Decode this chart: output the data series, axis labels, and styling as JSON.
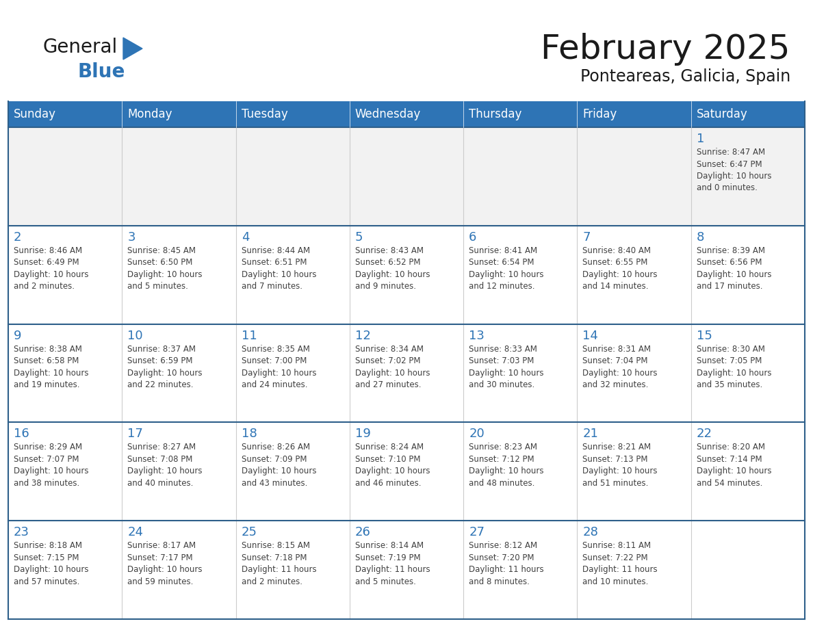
{
  "title": "February 2025",
  "subtitle": "Ponteareas, Galicia, Spain",
  "header_color": "#2E74B5",
  "header_text_color": "#FFFFFF",
  "cell_bg_color": "#FFFFFF",
  "row_separator_color": "#2E5F8A",
  "grid_line_color": "#CCCCCC",
  "day_number_color": "#2E74B5",
  "info_text_color": "#404040",
  "background_color": "#FFFFFF",
  "alt_row_bg": "#F2F2F2",
  "days_of_week": [
    "Sunday",
    "Monday",
    "Tuesday",
    "Wednesday",
    "Thursday",
    "Friday",
    "Saturday"
  ],
  "weeks": [
    [
      {
        "day": 0,
        "info": ""
      },
      {
        "day": 0,
        "info": ""
      },
      {
        "day": 0,
        "info": ""
      },
      {
        "day": 0,
        "info": ""
      },
      {
        "day": 0,
        "info": ""
      },
      {
        "day": 0,
        "info": ""
      },
      {
        "day": 1,
        "info": "Sunrise: 8:47 AM\nSunset: 6:47 PM\nDaylight: 10 hours\nand 0 minutes."
      }
    ],
    [
      {
        "day": 2,
        "info": "Sunrise: 8:46 AM\nSunset: 6:49 PM\nDaylight: 10 hours\nand 2 minutes."
      },
      {
        "day": 3,
        "info": "Sunrise: 8:45 AM\nSunset: 6:50 PM\nDaylight: 10 hours\nand 5 minutes."
      },
      {
        "day": 4,
        "info": "Sunrise: 8:44 AM\nSunset: 6:51 PM\nDaylight: 10 hours\nand 7 minutes."
      },
      {
        "day": 5,
        "info": "Sunrise: 8:43 AM\nSunset: 6:52 PM\nDaylight: 10 hours\nand 9 minutes."
      },
      {
        "day": 6,
        "info": "Sunrise: 8:41 AM\nSunset: 6:54 PM\nDaylight: 10 hours\nand 12 minutes."
      },
      {
        "day": 7,
        "info": "Sunrise: 8:40 AM\nSunset: 6:55 PM\nDaylight: 10 hours\nand 14 minutes."
      },
      {
        "day": 8,
        "info": "Sunrise: 8:39 AM\nSunset: 6:56 PM\nDaylight: 10 hours\nand 17 minutes."
      }
    ],
    [
      {
        "day": 9,
        "info": "Sunrise: 8:38 AM\nSunset: 6:58 PM\nDaylight: 10 hours\nand 19 minutes."
      },
      {
        "day": 10,
        "info": "Sunrise: 8:37 AM\nSunset: 6:59 PM\nDaylight: 10 hours\nand 22 minutes."
      },
      {
        "day": 11,
        "info": "Sunrise: 8:35 AM\nSunset: 7:00 PM\nDaylight: 10 hours\nand 24 minutes."
      },
      {
        "day": 12,
        "info": "Sunrise: 8:34 AM\nSunset: 7:02 PM\nDaylight: 10 hours\nand 27 minutes."
      },
      {
        "day": 13,
        "info": "Sunrise: 8:33 AM\nSunset: 7:03 PM\nDaylight: 10 hours\nand 30 minutes."
      },
      {
        "day": 14,
        "info": "Sunrise: 8:31 AM\nSunset: 7:04 PM\nDaylight: 10 hours\nand 32 minutes."
      },
      {
        "day": 15,
        "info": "Sunrise: 8:30 AM\nSunset: 7:05 PM\nDaylight: 10 hours\nand 35 minutes."
      }
    ],
    [
      {
        "day": 16,
        "info": "Sunrise: 8:29 AM\nSunset: 7:07 PM\nDaylight: 10 hours\nand 38 minutes."
      },
      {
        "day": 17,
        "info": "Sunrise: 8:27 AM\nSunset: 7:08 PM\nDaylight: 10 hours\nand 40 minutes."
      },
      {
        "day": 18,
        "info": "Sunrise: 8:26 AM\nSunset: 7:09 PM\nDaylight: 10 hours\nand 43 minutes."
      },
      {
        "day": 19,
        "info": "Sunrise: 8:24 AM\nSunset: 7:10 PM\nDaylight: 10 hours\nand 46 minutes."
      },
      {
        "day": 20,
        "info": "Sunrise: 8:23 AM\nSunset: 7:12 PM\nDaylight: 10 hours\nand 48 minutes."
      },
      {
        "day": 21,
        "info": "Sunrise: 8:21 AM\nSunset: 7:13 PM\nDaylight: 10 hours\nand 51 minutes."
      },
      {
        "day": 22,
        "info": "Sunrise: 8:20 AM\nSunset: 7:14 PM\nDaylight: 10 hours\nand 54 minutes."
      }
    ],
    [
      {
        "day": 23,
        "info": "Sunrise: 8:18 AM\nSunset: 7:15 PM\nDaylight: 10 hours\nand 57 minutes."
      },
      {
        "day": 24,
        "info": "Sunrise: 8:17 AM\nSunset: 7:17 PM\nDaylight: 10 hours\nand 59 minutes."
      },
      {
        "day": 25,
        "info": "Sunrise: 8:15 AM\nSunset: 7:18 PM\nDaylight: 11 hours\nand 2 minutes."
      },
      {
        "day": 26,
        "info": "Sunrise: 8:14 AM\nSunset: 7:19 PM\nDaylight: 11 hours\nand 5 minutes."
      },
      {
        "day": 27,
        "info": "Sunrise: 8:12 AM\nSunset: 7:20 PM\nDaylight: 11 hours\nand 8 minutes."
      },
      {
        "day": 28,
        "info": "Sunrise: 8:11 AM\nSunset: 7:22 PM\nDaylight: 11 hours\nand 10 minutes."
      },
      {
        "day": 0,
        "info": ""
      }
    ]
  ],
  "logo_color_general": "#1a1a1a",
  "logo_color_blue": "#2E74B5",
  "logo_triangle_color": "#2E74B5",
  "title_fontsize": 36,
  "subtitle_fontsize": 17,
  "header_fontsize": 12,
  "day_num_fontsize": 13,
  "info_fontsize": 8.5
}
